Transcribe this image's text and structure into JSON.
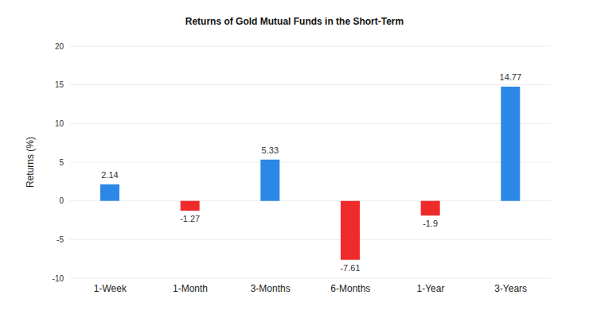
{
  "chart_data": {
    "type": "bar",
    "title": "Returns of Gold Mutual Funds in the Short-Term",
    "y_label": "Returns (%)",
    "categories": [
      "1-Week",
      "1-Month",
      "3-Months",
      "6-Months",
      "1-Year",
      "3-Years"
    ],
    "values": [
      2.14,
      -1.27,
      5.33,
      -7.61,
      -1.9,
      14.77
    ],
    "colors": [
      "#2b88e6",
      "#ee2a2a",
      "#2b88e6",
      "#ee2a2a",
      "#ee2a2a",
      "#2b88e6"
    ],
    "ylim": [
      -10,
      20
    ],
    "yticks": [
      -10,
      -5,
      0,
      5,
      10,
      15,
      20
    ],
    "grid": true,
    "data_labels": true
  }
}
